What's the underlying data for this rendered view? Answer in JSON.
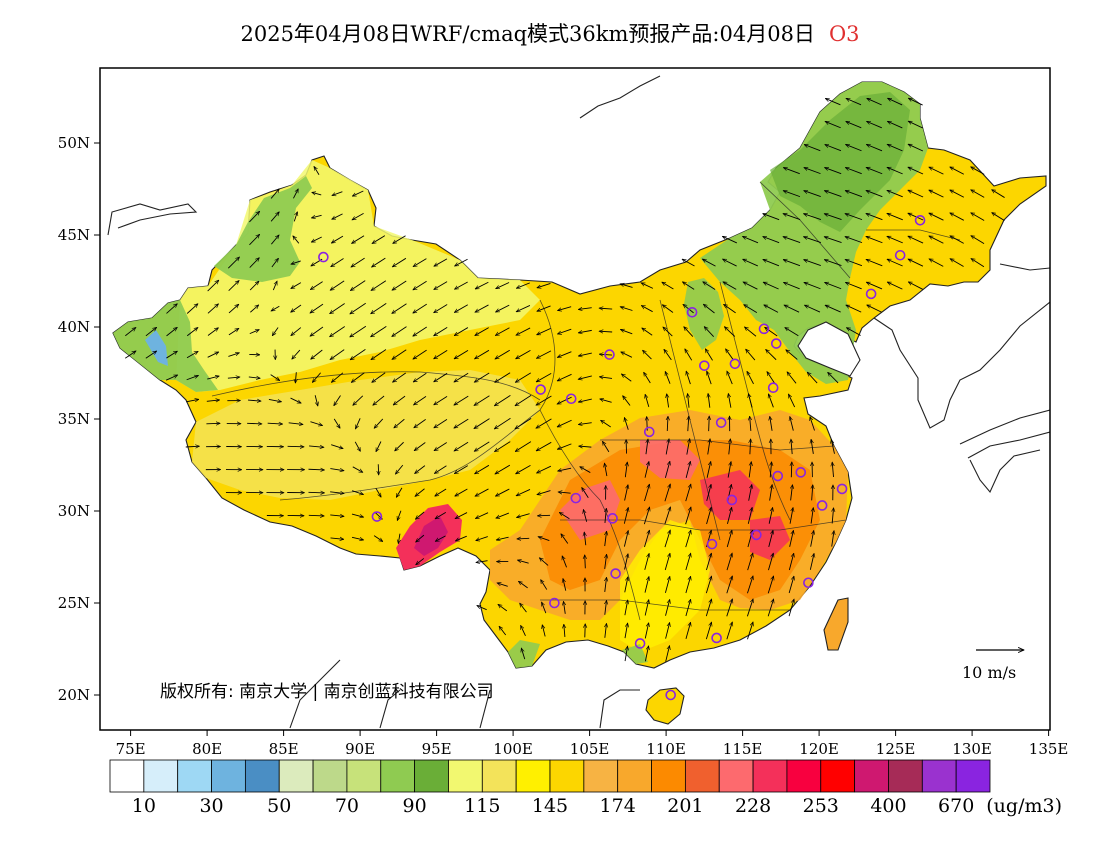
{
  "title": {
    "text": "2025年04月08日WRF/cmaq模式36km预报产品:04月08日",
    "variable": "O3"
  },
  "map": {
    "lon_ticks": [
      "75E",
      "80E",
      "85E",
      "90E",
      "95E",
      "100E",
      "105E",
      "110E",
      "115E",
      "120E",
      "125E",
      "130E",
      "135E"
    ],
    "lat_ticks": [
      "50N",
      "45N",
      "40N",
      "35N",
      "30N",
      "25N",
      "20N"
    ],
    "lon_range": [
      73,
      135
    ],
    "lat_range": [
      18,
      54
    ]
  },
  "copyright": "版权所有: 南京大学 | 南京创蓝科技有限公司",
  "wind_reference": {
    "label": "10 m/s",
    "speed": 10
  },
  "colorbar": {
    "colors": [
      "#ffffff",
      "#d6eefa",
      "#9ed8f4",
      "#6eb3df",
      "#4a8ec4",
      "#dcebbd",
      "#bdd98a",
      "#c7e27a",
      "#8fcb51",
      "#6aae37",
      "#f2f870",
      "#f3e35a",
      "#fff000",
      "#fcd600",
      "#f7b343",
      "#f8a82c",
      "#fc8a00",
      "#f0602e",
      "#fd6a6e",
      "#f4305a",
      "#f8003f",
      "#ff0000",
      "#cf1870",
      "#a62b57",
      "#9a32cf",
      "#8a24e0"
    ],
    "labels": [
      "10",
      "30",
      "50",
      "70",
      "90",
      "115",
      "145",
      "174",
      "201",
      "228",
      "253",
      "400",
      "670"
    ],
    "unit": "(ug/m3)"
  },
  "cities": [
    {
      "lon": 87.6,
      "lat": 43.8
    },
    {
      "lon": 91.1,
      "lat": 29.7
    },
    {
      "lon": 101.8,
      "lat": 36.6
    },
    {
      "lon": 103.8,
      "lat": 36.1
    },
    {
      "lon": 106.3,
      "lat": 38.5
    },
    {
      "lon": 111.7,
      "lat": 40.8
    },
    {
      "lon": 116.4,
      "lat": 39.9
    },
    {
      "lon": 117.2,
      "lat": 39.1
    },
    {
      "lon": 114.5,
      "lat": 38.0
    },
    {
      "lon": 112.5,
      "lat": 37.9
    },
    {
      "lon": 117.0,
      "lat": 36.7
    },
    {
      "lon": 113.6,
      "lat": 34.8
    },
    {
      "lon": 108.9,
      "lat": 34.3
    },
    {
      "lon": 104.1,
      "lat": 30.7
    },
    {
      "lon": 106.5,
      "lat": 29.6
    },
    {
      "lon": 114.3,
      "lat": 30.6
    },
    {
      "lon": 117.3,
      "lat": 31.9
    },
    {
      "lon": 118.8,
      "lat": 32.1
    },
    {
      "lon": 121.5,
      "lat": 31.2
    },
    {
      "lon": 120.2,
      "lat": 30.3
    },
    {
      "lon": 115.9,
      "lat": 28.7
    },
    {
      "lon": 113.0,
      "lat": 28.2
    },
    {
      "lon": 106.7,
      "lat": 26.6
    },
    {
      "lon": 102.7,
      "lat": 25.0
    },
    {
      "lon": 108.3,
      "lat": 22.8
    },
    {
      "lon": 113.3,
      "lat": 23.1
    },
    {
      "lon": 119.3,
      "lat": 26.1
    },
    {
      "lon": 110.3,
      "lat": 20.0
    },
    {
      "lon": 126.6,
      "lat": 45.8
    },
    {
      "lon": 125.3,
      "lat": 43.9
    },
    {
      "lon": 123.4,
      "lat": 41.8
    }
  ],
  "wind_sample": [
    {
      "lon": 80,
      "lat": 45,
      "u": 2,
      "v": 2
    },
    {
      "lon": 90,
      "lat": 40,
      "u": -3,
      "v": -2
    },
    {
      "lon": 100,
      "lat": 35,
      "u": -3,
      "v": -2
    },
    {
      "lon": 110,
      "lat": 30,
      "u": 1,
      "v": 3
    },
    {
      "lon": 115,
      "lat": 25,
      "u": 1,
      "v": 3
    },
    {
      "lon": 120,
      "lat": 45,
      "u": -3,
      "v": 1
    },
    {
      "lon": 85,
      "lat": 32,
      "u": 3,
      "v": 0
    }
  ]
}
